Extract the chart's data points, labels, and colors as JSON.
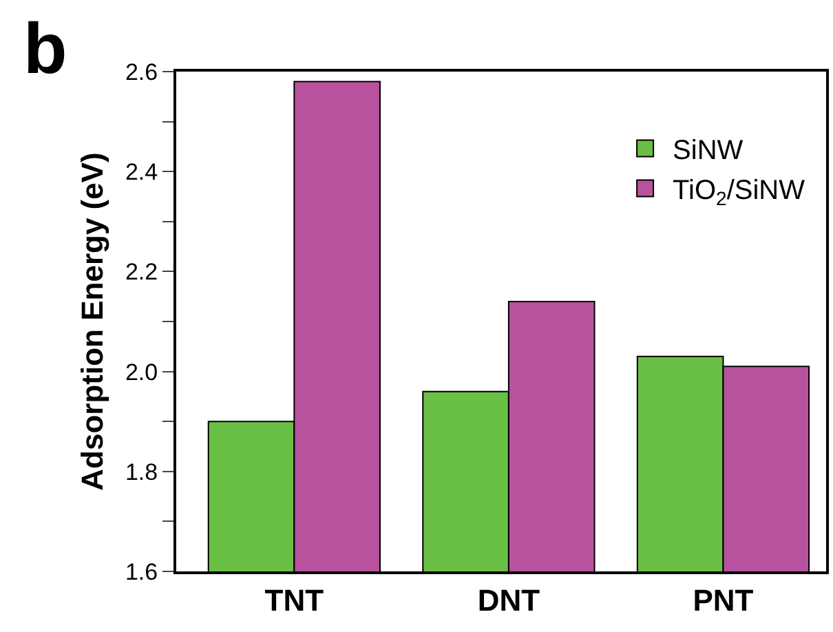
{
  "chart_data": {
    "type": "bar",
    "ylabel": "Adsorption Energy (eV)",
    "annotations": [
      "b"
    ],
    "categories": [
      "TNT",
      "DNT",
      "PNT"
    ],
    "series": [
      {
        "name": "SiNW",
        "color": "#6abf45",
        "values": [
          1.9,
          1.96,
          2.03
        ]
      },
      {
        "name": "TiO$_{2}$/SiNW",
        "color": "#b9529e",
        "values": [
          2.58,
          2.14,
          2.01
        ]
      }
    ],
    "ylim": [
      1.6,
      2.6
    ],
    "yticks": [
      {
        "value": 1.6,
        "label": "1.6"
      },
      {
        "value": 1.7,
        "label": null
      },
      {
        "value": 1.8,
        "label": "1.8"
      },
      {
        "value": 1.9,
        "label": null
      },
      {
        "value": 2.0,
        "label": "2.0"
      },
      {
        "value": 2.1,
        "label": null
      },
      {
        "value": 2.2,
        "label": "2.2"
      },
      {
        "value": 2.3,
        "label": null
      },
      {
        "value": 2.4,
        "label": "2.4"
      },
      {
        "value": 2.5,
        "label": null
      },
      {
        "value": 2.6,
        "label": "2.6"
      }
    ],
    "legend": "top right"
  }
}
